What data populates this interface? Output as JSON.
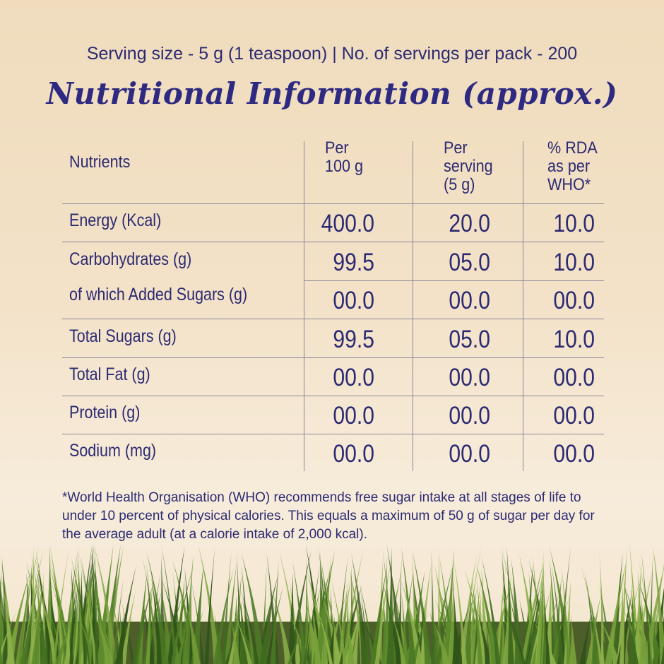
{
  "header": {
    "serving": "Serving size - 5 g (1 teaspoon) | No. of servings per pack - 200",
    "title": "Nutritional Information (approx.)"
  },
  "table": {
    "header": [
      [
        "Nutrients"
      ],
      [
        "Per",
        "100 g"
      ],
      [
        "Per",
        "serving",
        "(5 g)"
      ],
      [
        "% RDA",
        "as per",
        "WHO*"
      ]
    ],
    "rows": [
      [
        "Energy (Kcal)",
        "400.0",
        "20.0",
        "10.0"
      ],
      [
        "Carbohydrates (g)",
        "99.5",
        "05.0",
        "10.0"
      ],
      [
        "of which Added Sugars (g)",
        "00.0",
        "00.0",
        "00.0"
      ],
      [
        "Total Sugars (g)",
        "99.5",
        "05.0",
        "10.0"
      ],
      [
        "Total Fat (g)",
        "00.0",
        "00.0",
        "00.0"
      ],
      [
        "Protein (g)",
        "00.0",
        "00.0",
        "00.0"
      ],
      [
        "Sodium (mg)",
        "00.0",
        "00.0",
        "00.0"
      ]
    ]
  },
  "footnote": "*World Health Organisation (WHO) recommends free sugar intake at all stages of life to under 10 percent of physical calories. This equals a maximum of 50 g of sugar per day for the average adult (at a calorie intake of 2,000 kcal)."
}
